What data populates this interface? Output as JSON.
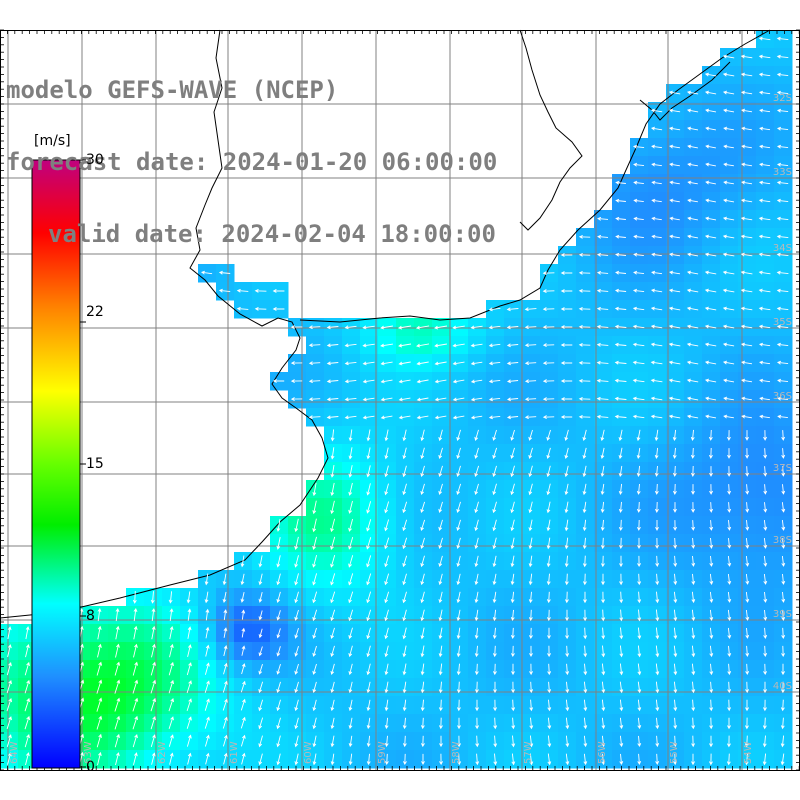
{
  "title": {
    "line1": "modelo GEFS-WAVE (NCEP)",
    "line2": "forecast date: 2024-01-20 06:00:00",
    "line3": "valid date: 2024-02-04 18:00:00"
  },
  "colorbar": {
    "units": "[m/s]",
    "ticks": [
      "30",
      "22",
      "15",
      "8",
      "0"
    ],
    "tick_values": [
      30,
      22,
      15,
      8,
      0
    ],
    "min": 0,
    "max": 30,
    "colors": [
      "#0000ff",
      "#1f8fff",
      "#00ffff",
      "#00ff00",
      "#ffff00",
      "#ff8000",
      "#ff0000",
      "#c0007f"
    ]
  },
  "map": {
    "lat_labels": [
      "32S",
      "33S",
      "34S",
      "35S",
      "36S",
      "37S",
      "38S",
      "39S",
      "40S"
    ],
    "lon_labels": [
      "64W",
      "63W",
      "62W",
      "61W",
      "60W",
      "59W",
      "58W",
      "57W",
      "56W",
      "55W",
      "54W"
    ],
    "land_color": "#ffffff",
    "grid_color": "#808080",
    "arrow_color": "#ffffff"
  }
}
